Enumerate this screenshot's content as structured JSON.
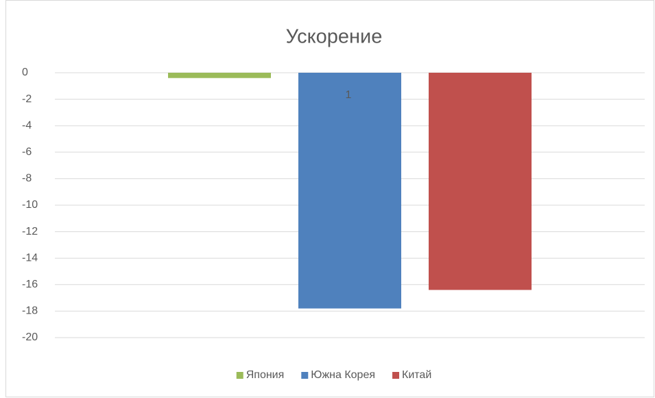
{
  "chart_data": {
    "type": "bar",
    "title": "Ускорение",
    "categories": [
      "1"
    ],
    "series": [
      {
        "name": "Япония",
        "color": "#9bbb59",
        "values": [
          -0.4
        ]
      },
      {
        "name": "Южна Корея",
        "color": "#4f81bd",
        "values": [
          -17.8
        ]
      },
      {
        "name": "Китай",
        "color": "#c0504d",
        "values": [
          -16.4
        ]
      }
    ],
    "ylim": [
      -20,
      0
    ],
    "yticks": [
      0,
      -2,
      -4,
      -6,
      -8,
      -10,
      -12,
      -14,
      -16,
      -18,
      -20
    ],
    "grid": true,
    "legend": "bottom"
  }
}
